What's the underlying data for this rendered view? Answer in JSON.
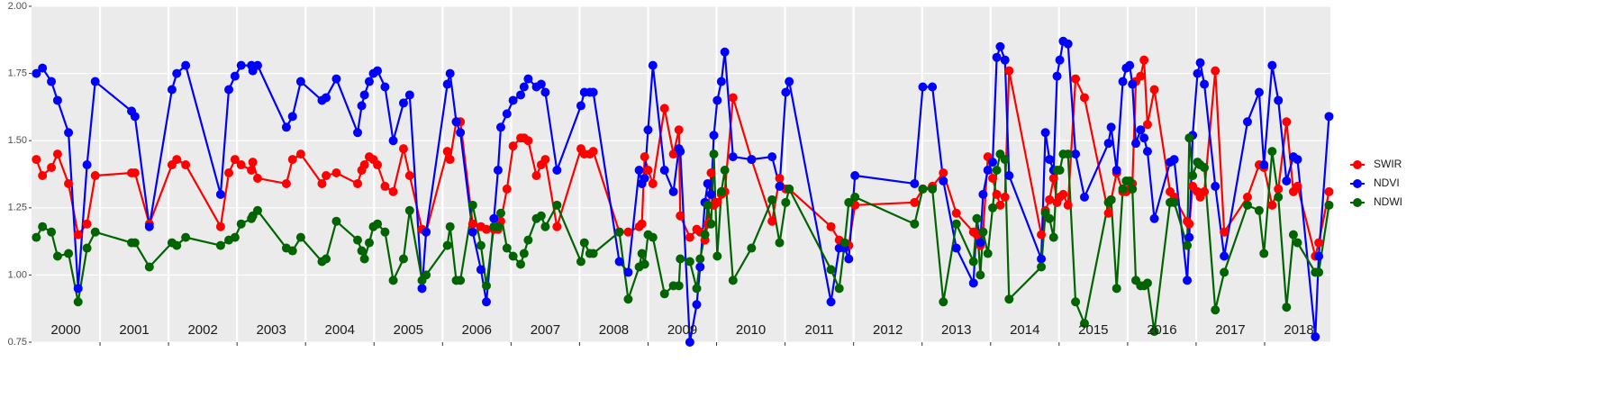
{
  "chart_data": {
    "type": "line",
    "xlim": [
      2000.0,
      2018.96
    ],
    "ylim": [
      0.75,
      2.0
    ],
    "yticks": [
      {
        "value": 0.75,
        "label": "0.75"
      },
      {
        "value": 1.0,
        "label": "1.00"
      },
      {
        "value": 1.25,
        "label": "1.25"
      },
      {
        "value": 1.5,
        "label": "1.50"
      },
      {
        "value": 1.75,
        "label": "1.75"
      },
      {
        "value": 2.0,
        "label": "2.00"
      }
    ],
    "xticks": [
      2001,
      2002,
      2003,
      2004,
      2005,
      2006,
      2007,
      2008,
      2009,
      2010,
      2011,
      2012,
      2013,
      2014,
      2015,
      2016,
      2017,
      2018
    ],
    "year_labels": [
      {
        "value": 2000.5,
        "label": "2000"
      },
      {
        "value": 2001.5,
        "label": "2001"
      },
      {
        "value": 2002.5,
        "label": "2002"
      },
      {
        "value": 2003.5,
        "label": "2003"
      },
      {
        "value": 2004.5,
        "label": "2004"
      },
      {
        "value": 2005.5,
        "label": "2005"
      },
      {
        "value": 2006.5,
        "label": "2006"
      },
      {
        "value": 2007.5,
        "label": "2007"
      },
      {
        "value": 2008.5,
        "label": "2008"
      },
      {
        "value": 2009.5,
        "label": "2009"
      },
      {
        "value": 2010.5,
        "label": "2010"
      },
      {
        "value": 2011.5,
        "label": "2011"
      },
      {
        "value": 2012.5,
        "label": "2012"
      },
      {
        "value": 2013.5,
        "label": "2013"
      },
      {
        "value": 2014.5,
        "label": "2014"
      },
      {
        "value": 2015.5,
        "label": "2015"
      },
      {
        "value": 2016.5,
        "label": "2016"
      },
      {
        "value": 2017.5,
        "label": "2017"
      },
      {
        "value": 2018.5,
        "label": "2018"
      }
    ],
    "grid": true,
    "legend": "right",
    "x": [
      2000.07,
      2000.16,
      2000.29,
      2000.38,
      2000.54,
      2000.68,
      2000.81,
      2000.93,
      2001.46,
      2001.51,
      2001.72,
      2002.05,
      2002.12,
      2002.25,
      2002.76,
      2002.88,
      2002.97,
      2003.06,
      2003.21,
      2003.23,
      2003.3,
      2003.72,
      2003.81,
      2003.93,
      2004.24,
      2004.3,
      2004.45,
      2004.76,
      2004.82,
      2004.86,
      2004.93,
      2004.99,
      2005.05,
      2005.16,
      2005.28,
      2005.43,
      2005.52,
      2005.7,
      2005.76,
      2006.07,
      2006.11,
      2006.2,
      2006.26,
      2006.44,
      2006.56,
      2006.64,
      2006.75,
      2006.81,
      2006.85,
      2006.94,
      2007.03,
      2007.14,
      2007.19,
      2007.25,
      2007.37,
      2007.44,
      2007.5,
      2007.67,
      2008.02,
      2008.07,
      2008.15,
      2008.2,
      2008.58,
      2008.71,
      2008.87,
      2008.91,
      2008.95,
      2009.0,
      2009.07,
      2009.24,
      2009.37,
      2009.45,
      2009.47,
      2009.61,
      2009.71,
      2009.76,
      2009.83,
      2009.87,
      2009.92,
      2009.96,
      2010.01,
      2010.07,
      2010.12,
      2010.24,
      2010.51,
      2010.81,
      2010.92,
      2011.01,
      2011.06,
      2011.67,
      2011.79,
      2011.87,
      2011.93,
      2012.02,
      2012.89,
      2013.01,
      2013.15,
      2013.31,
      2013.5,
      2013.75,
      2013.8,
      2013.85,
      2013.89,
      2013.96,
      2014.03,
      2014.09,
      2014.14,
      2014.21,
      2014.27,
      2014.74,
      2014.8,
      2014.86,
      2014.92,
      2014.97,
      2015.01,
      2015.06,
      2015.13,
      2015.24,
      2015.37,
      2015.72,
      2015.76,
      2015.84,
      2015.93,
      2015.98,
      2016.03,
      2016.07,
      2016.12,
      2016.19,
      2016.24,
      2016.29,
      2016.39,
      2016.62,
      2016.68,
      2016.87,
      2016.9,
      2016.95,
      2017.02,
      2017.06,
      2017.12,
      2017.28,
      2017.41,
      2017.75,
      2017.92,
      2017.99,
      2018.11,
      2018.2,
      2018.32,
      2018.42,
      2018.48,
      2018.74,
      2018.79,
      2018.94
    ],
    "series": [
      {
        "name": "SWIR",
        "color": "#ff0000",
        "values": [
          1.43,
          1.37,
          1.4,
          1.45,
          1.34,
          1.15,
          1.19,
          1.37,
          1.38,
          1.38,
          1.19,
          1.41,
          1.43,
          1.41,
          1.18,
          1.38,
          1.43,
          1.41,
          1.39,
          1.42,
          1.36,
          1.34,
          1.43,
          1.45,
          1.34,
          1.37,
          1.38,
          1.34,
          1.39,
          1.41,
          1.44,
          1.43,
          1.41,
          1.33,
          1.31,
          1.47,
          1.37,
          1.17,
          1.16,
          1.46,
          1.43,
          1.57,
          1.57,
          1.19,
          1.18,
          1.17,
          1.17,
          1.17,
          1.2,
          1.32,
          1.48,
          1.51,
          1.51,
          1.5,
          1.37,
          1.41,
          1.43,
          1.18,
          1.47,
          1.45,
          1.45,
          1.46,
          1.16,
          1.16,
          1.18,
          1.19,
          1.44,
          1.39,
          1.34,
          1.62,
          1.45,
          1.54,
          1.22,
          1.14,
          1.17,
          1.16,
          1.13,
          1.19,
          1.38,
          1.26,
          1.27,
          1.3,
          1.31,
          1.66,
          1.43,
          1.2,
          1.36,
          1.32,
          1.32,
          1.18,
          1.13,
          1.11,
          1.11,
          1.26,
          1.27,
          1.32,
          1.33,
          1.38,
          1.23,
          1.16,
          1.15,
          1.11,
          1.16,
          1.44,
          1.36,
          1.3,
          1.26,
          1.29,
          1.76,
          1.15,
          1.24,
          1.28,
          1.36,
          1.27,
          1.29,
          1.3,
          1.26,
          1.73,
          1.66,
          1.23,
          1.28,
          1.38,
          1.31,
          1.31,
          1.32,
          1.34,
          1.72,
          1.74,
          1.8,
          1.56,
          1.69,
          1.31,
          1.29,
          1.2,
          1.19,
          1.33,
          1.31,
          1.29,
          1.31,
          1.76,
          1.16,
          1.29,
          1.41,
          1.4,
          1.26,
          1.32,
          1.57,
          1.31,
          1.33,
          1.07,
          1.12,
          1.31
        ]
      },
      {
        "name": "NDVI",
        "color": "#0000ff",
        "values": [
          1.75,
          1.77,
          1.72,
          1.65,
          1.53,
          0.95,
          1.41,
          1.72,
          1.61,
          1.59,
          1.18,
          1.69,
          1.75,
          1.78,
          1.3,
          1.69,
          1.74,
          1.78,
          1.78,
          1.76,
          1.78,
          1.55,
          1.59,
          1.72,
          1.65,
          1.66,
          1.73,
          1.53,
          1.63,
          1.67,
          1.72,
          1.75,
          1.76,
          1.7,
          1.5,
          1.64,
          1.67,
          0.95,
          1.16,
          1.71,
          1.75,
          1.57,
          1.53,
          1.16,
          1.02,
          0.9,
          1.21,
          1.39,
          1.55,
          1.6,
          1.65,
          1.67,
          1.7,
          1.73,
          1.7,
          1.71,
          1.68,
          1.39,
          1.63,
          1.68,
          1.68,
          1.68,
          1.05,
          1.01,
          1.39,
          1.34,
          1.36,
          1.54,
          1.78,
          1.39,
          1.31,
          1.47,
          1.46,
          0.75,
          0.89,
          1.03,
          1.27,
          1.34,
          1.3,
          1.52,
          1.65,
          1.72,
          1.83,
          1.44,
          1.43,
          1.44,
          1.33,
          1.68,
          1.72,
          0.9,
          1.1,
          1.1,
          1.06,
          1.37,
          1.34,
          1.7,
          1.7,
          1.35,
          1.1,
          0.97,
          1.21,
          1.12,
          1.3,
          1.39,
          1.42,
          1.81,
          1.85,
          1.8,
          1.37,
          1.06,
          1.53,
          1.43,
          1.39,
          1.74,
          1.8,
          1.87,
          1.86,
          1.45,
          1.29,
          1.49,
          1.55,
          1.39,
          1.72,
          1.77,
          1.78,
          1.71,
          1.49,
          1.54,
          1.51,
          1.46,
          1.21,
          1.42,
          1.43,
          0.98,
          1.14,
          1.52,
          1.75,
          1.79,
          1.71,
          1.33,
          1.07,
          1.57,
          1.68,
          1.41,
          1.78,
          1.65,
          1.35,
          1.44,
          1.43,
          0.77,
          1.07,
          1.59
        ]
      },
      {
        "name": "NDWI",
        "color": "#006400",
        "values": [
          1.14,
          1.18,
          1.16,
          1.07,
          1.08,
          0.9,
          1.1,
          1.16,
          1.12,
          1.12,
          1.03,
          1.12,
          1.11,
          1.14,
          1.11,
          1.13,
          1.14,
          1.19,
          1.21,
          1.22,
          1.24,
          1.1,
          1.09,
          1.14,
          1.05,
          1.06,
          1.2,
          1.13,
          1.09,
          1.06,
          1.12,
          1.18,
          1.19,
          1.16,
          0.98,
          1.06,
          1.24,
          0.98,
          1.0,
          1.11,
          1.18,
          0.98,
          0.98,
          1.26,
          1.11,
          0.96,
          1.18,
          1.18,
          1.23,
          1.1,
          1.07,
          1.04,
          1.08,
          1.13,
          1.21,
          1.22,
          1.18,
          1.26,
          1.05,
          1.12,
          1.08,
          1.08,
          1.16,
          0.91,
          1.03,
          1.08,
          1.04,
          1.15,
          1.14,
          0.93,
          0.96,
          0.96,
          1.06,
          1.05,
          0.95,
          1.06,
          1.15,
          1.26,
          1.19,
          1.45,
          1.07,
          1.31,
          1.39,
          0.98,
          1.1,
          1.28,
          1.12,
          1.27,
          1.32,
          1.02,
          0.95,
          1.12,
          1.27,
          1.29,
          1.19,
          1.32,
          1.32,
          0.9,
          1.19,
          1.05,
          1.21,
          1.0,
          1.16,
          1.08,
          1.25,
          1.39,
          1.45,
          1.43,
          0.91,
          1.03,
          1.23,
          1.21,
          1.14,
          1.39,
          1.39,
          1.45,
          1.45,
          0.9,
          0.82,
          1.27,
          1.28,
          0.95,
          1.32,
          1.35,
          1.35,
          1.32,
          0.98,
          0.96,
          0.96,
          0.97,
          0.79,
          1.27,
          1.27,
          1.11,
          1.51,
          1.37,
          1.42,
          1.41,
          1.4,
          0.87,
          1.01,
          1.26,
          1.24,
          1.08,
          1.46,
          1.29,
          0.88,
          1.15,
          1.12,
          1.01,
          1.01,
          1.26
        ]
      }
    ]
  }
}
